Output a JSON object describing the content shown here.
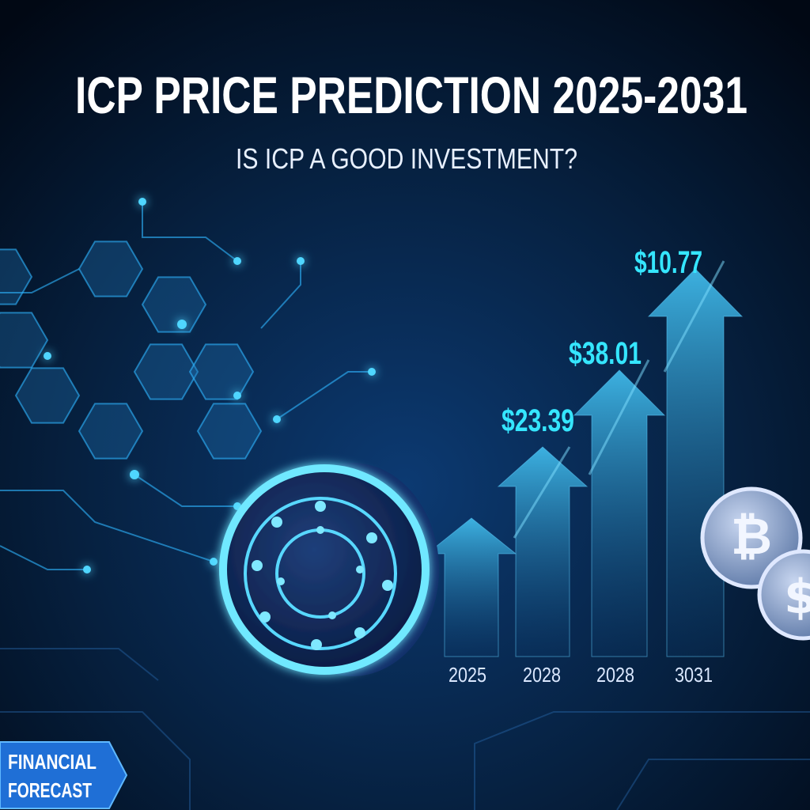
{
  "header": {
    "title": "ICP PRICE PREDICTION 2025-2031",
    "subtitle": "IS ICP A GOOD INVESTMENT?"
  },
  "forecast": {
    "points": [
      {
        "year": "2025"
      },
      {
        "year": "2028",
        "price": "$23.39"
      },
      {
        "year": "2028",
        "price": "$38.01"
      },
      {
        "year": "3031",
        "price": "$10.77"
      }
    ]
  },
  "badge": {
    "lines": [
      "FINANCIAL",
      "FORECAST"
    ]
  }
}
